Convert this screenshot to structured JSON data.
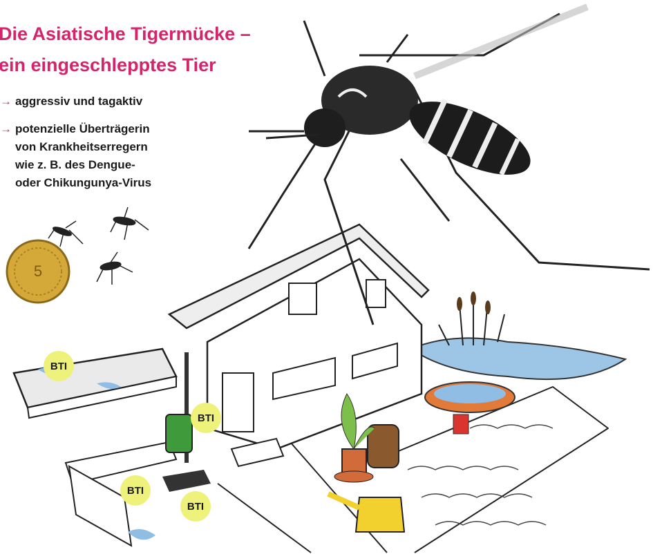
{
  "title": [
    "Die Asiatische Tigermücke –",
    "ein eingeschlepptes Tier"
  ],
  "bullet_marker": "→",
  "bullets": [
    [
      "aggressiv und tagaktiv"
    ],
    [
      "potenzielle Überträgerin",
      "von Krankheitserregern",
      "wie z. B. des Dengue-",
      "oder Chikungunya-Virus"
    ]
  ],
  "coin_label": "5",
  "bti_labels": [
    "BTI",
    "BTI",
    "BTI",
    "BTI"
  ]
}
